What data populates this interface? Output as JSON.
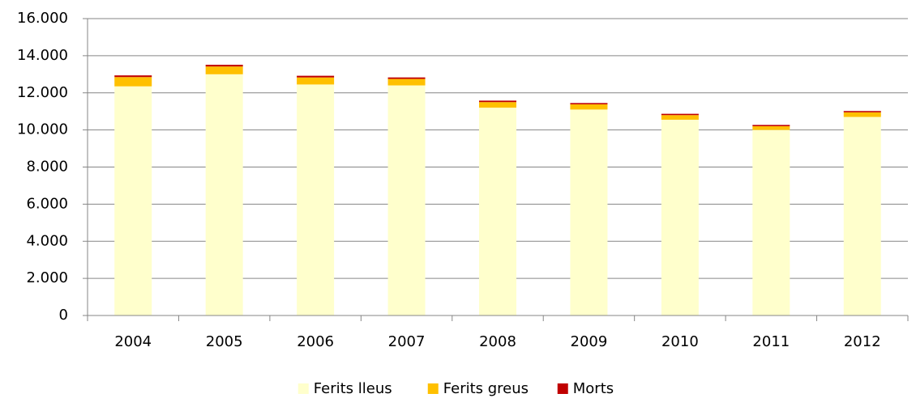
{
  "chart_data": {
    "type": "stacked_bar",
    "categories": [
      "2004",
      "2005",
      "2006",
      "2007",
      "2008",
      "2009",
      "2010",
      "2011",
      "2012"
    ],
    "series": [
      {
        "name": "Ferits lleus",
        "color": "#ffffcc",
        "values": [
          12350,
          13000,
          12450,
          12400,
          11200,
          11100,
          10550,
          10000,
          10700
        ]
      },
      {
        "name": "Ferits greus",
        "color": "#ffc000",
        "values": [
          500,
          420,
          380,
          350,
          300,
          280,
          250,
          200,
          250
        ]
      },
      {
        "name": "Morts",
        "color": "#c00000",
        "values": [
          90,
          90,
          90,
          80,
          80,
          70,
          70,
          70,
          70
        ]
      }
    ],
    "ylim": [
      0,
      16000
    ],
    "yticks": [
      0,
      {
        "value": 2000,
        "label": "2.000"
      },
      {
        "value": 4000,
        "label": "4.000"
      },
      {
        "value": 6000,
        "label": "6.000"
      },
      {
        "value": 8000,
        "label": "8.000"
      },
      {
        "value": 10000,
        "label": "10.000"
      },
      {
        "value": 12000,
        "label": "12.000"
      },
      {
        "value": 14000,
        "label": "14.000"
      },
      {
        "value": 16000,
        "label": "16.000"
      }
    ],
    "grid": true,
    "legend": "bottom"
  }
}
